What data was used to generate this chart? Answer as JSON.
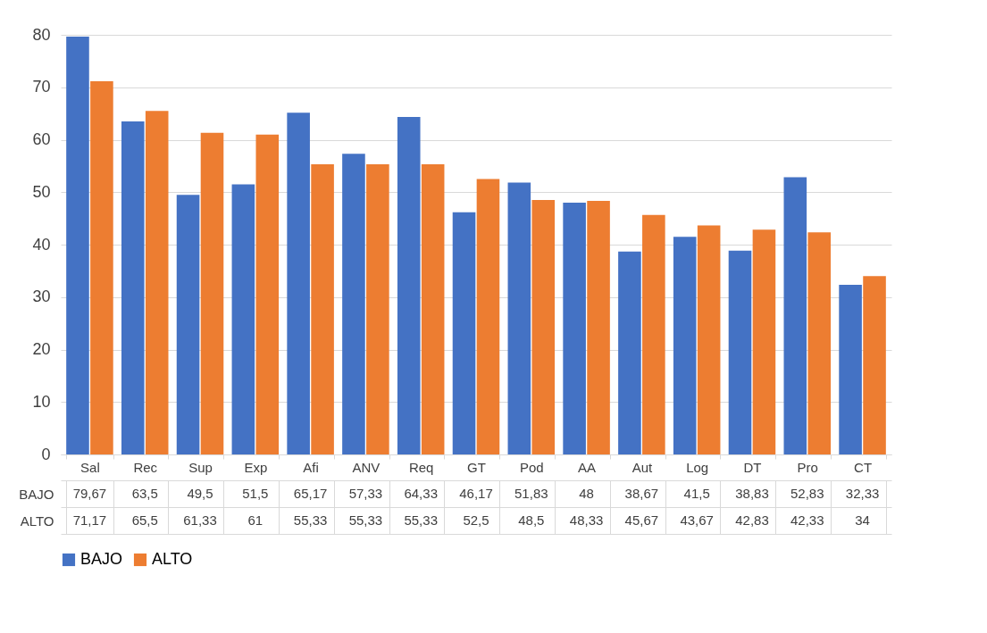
{
  "chart_data": {
    "type": "bar",
    "categories": [
      "Sal",
      "Rec",
      "Sup",
      "Exp",
      "Afi",
      "ANV",
      "Req",
      "GT",
      "Pod",
      "AA",
      "Aut",
      "Log",
      "DT",
      "Pro",
      "CT"
    ],
    "series": [
      {
        "name": "BAJO",
        "color": "#4472c4",
        "values": [
          79.67,
          63.5,
          49.5,
          51.5,
          65.17,
          57.33,
          64.33,
          46.17,
          51.83,
          48,
          38.67,
          41.5,
          38.83,
          52.83,
          32.33
        ],
        "value_labels": [
          "79,67",
          "63,5",
          "49,5",
          "51,5",
          "65,17",
          "57,33",
          "64,33",
          "46,17",
          "51,83",
          "48",
          "38,67",
          "41,5",
          "38,83",
          "52,83",
          "32,33"
        ]
      },
      {
        "name": "ALTO",
        "color": "#ed7d31",
        "values": [
          71.17,
          65.5,
          61.33,
          61,
          55.33,
          55.33,
          55.33,
          52.5,
          48.5,
          48.33,
          45.67,
          43.67,
          42.83,
          42.33,
          34
        ],
        "value_labels": [
          "71,17",
          "65,5",
          "61,33",
          "61",
          "55,33",
          "55,33",
          "55,33",
          "52,5",
          "48,5",
          "48,33",
          "45,67",
          "43,67",
          "42,83",
          "42,33",
          "34"
        ]
      }
    ],
    "ylim": [
      0,
      80
    ],
    "yticks": [
      0,
      10,
      20,
      30,
      40,
      50,
      60,
      70,
      80
    ],
    "grid": "y",
    "legend": "bottom"
  }
}
